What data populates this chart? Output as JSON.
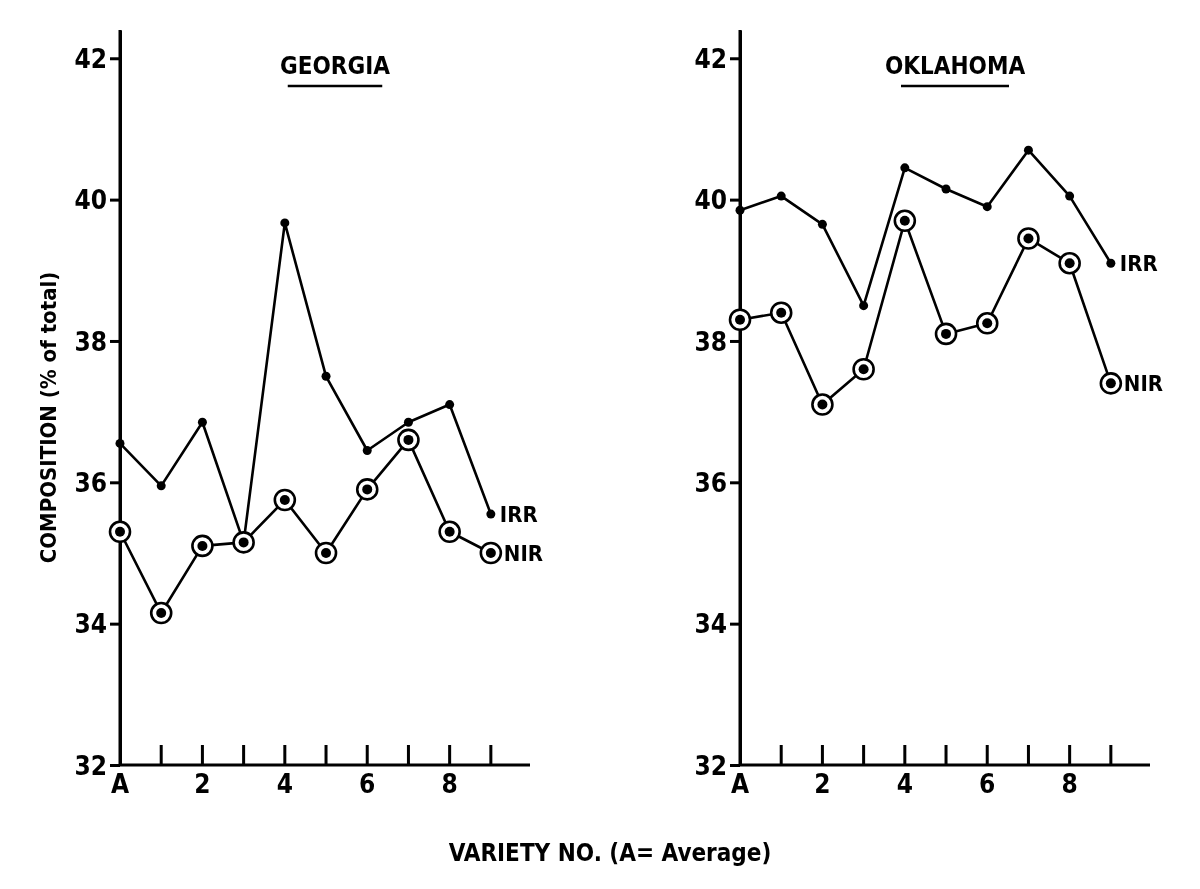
{
  "chart_data": [
    {
      "type": "line",
      "title": "GEORGIA",
      "ylabel": "COMPOSITION (% of total)",
      "xlabel": "VARIETY NO. (A= Average)",
      "categories": [
        "A",
        null,
        "2",
        null,
        "4",
        null,
        "6",
        null,
        "8",
        null
      ],
      "ylim": [
        32,
        42.4
      ],
      "yticks": [
        32,
        34,
        36,
        38,
        40,
        42
      ],
      "grid": false,
      "series": [
        {
          "name": "IRR",
          "color": "#000000",
          "marker": "circle",
          "values": [
            36.55,
            35.95,
            36.85,
            35.15,
            39.67,
            37.5,
            36.45,
            36.85,
            37.1,
            35.55
          ]
        },
        {
          "name": "NIR",
          "color": "#000000",
          "marker": "circle",
          "values": [
            35.3,
            34.15,
            35.1,
            35.15,
            35.75,
            35.0,
            35.9,
            36.6,
            35.3,
            35.0
          ]
        }
      ]
    },
    {
      "type": "line",
      "title": "OKLAHOMA",
      "categories": [
        "A",
        null,
        "2",
        null,
        "4",
        null,
        "6",
        null,
        "8",
        null
      ],
      "ylim": [
        32,
        42.4
      ],
      "yticks": [
        32,
        34,
        36,
        38,
        40,
        42
      ],
      "grid": false,
      "series": [
        {
          "name": "IRR",
          "color": "#000000",
          "marker": "circle",
          "values": [
            39.85,
            40.05,
            39.65,
            38.5,
            40.45,
            40.15,
            39.9,
            40.7,
            40.05,
            39.1
          ]
        },
        {
          "name": "NIR",
          "color": "#000000",
          "marker": "circle",
          "values": [
            38.3,
            38.4,
            37.1,
            37.6,
            39.7,
            38.1,
            38.25,
            39.45,
            39.1,
            37.4
          ]
        }
      ]
    }
  ]
}
